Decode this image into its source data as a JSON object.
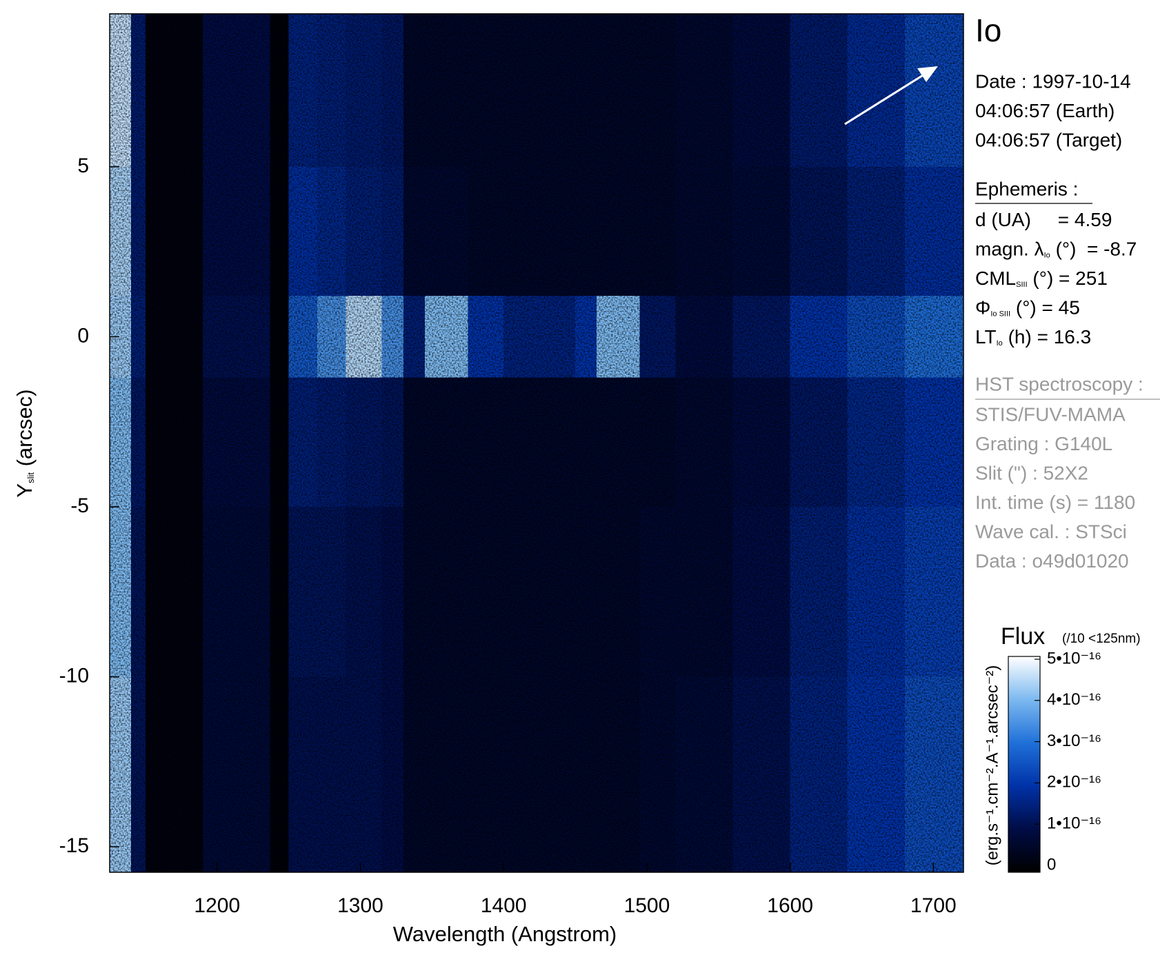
{
  "chart_data": {
    "type": "heatmap",
    "xlabel": "Wavelength (Angstrom)",
    "ylabel": {
      "text": "Y",
      "sub": "slit",
      "rest": " (arcsec)"
    },
    "xlim": [
      1125,
      1721
    ],
    "ylim": [
      -15.75,
      9.5
    ],
    "xticks": [
      1200,
      1300,
      1400,
      1500,
      1600,
      1700
    ],
    "yticks": [
      -15,
      -10,
      -5,
      0,
      5
    ],
    "x_edges": [
      1125,
      1140,
      1150,
      1190,
      1237,
      1250,
      1270,
      1290,
      1315,
      1330,
      1345,
      1375,
      1400,
      1450,
      1465,
      1495,
      1520,
      1560,
      1600,
      1640,
      1680,
      1721
    ],
    "y_edges": [
      9.5,
      5,
      1.2,
      -1.2,
      -5,
      -10,
      -15.75
    ],
    "z": [
      [
        4.5e-16,
        1.4e-16,
        2e-17,
        1e-16,
        1.5e-17,
        1.6e-16,
        1.5e-16,
        1.4e-16,
        1.3e-16,
        6e-17,
        6e-17,
        6e-17,
        6e-17,
        6e-17,
        6e-17,
        6e-17,
        7e-17,
        9e-17,
        1.4e-16,
        1.8e-16,
        2.3e-16
      ],
      [
        4.3e-16,
        1.4e-16,
        2e-17,
        1e-16,
        1.5e-17,
        1.9e-16,
        1.7e-16,
        1.5e-16,
        1.4e-16,
        7e-17,
        7e-17,
        6e-17,
        6e-17,
        6e-17,
        6e-17,
        6e-17,
        7e-17,
        8e-17,
        1.2e-16,
        1.5e-16,
        1.9e-16
      ],
      [
        4.2e-16,
        1.5e-16,
        2e-17,
        1.1e-16,
        1.5e-17,
        2.6e-16,
        3.4e-16,
        4.4e-16,
        3.4e-16,
        1.5e-16,
        4e-16,
        2e-16,
        1.6e-16,
        2e-16,
        4e-16,
        1.3e-16,
        9e-17,
        1.3e-16,
        2e-16,
        2.4e-16,
        2.9e-16
      ],
      [
        4e-16,
        1.3e-16,
        2e-17,
        9e-17,
        1.5e-17,
        1.5e-16,
        1.4e-16,
        1.3e-16,
        1.2e-16,
        6e-17,
        6e-17,
        6e-17,
        6e-17,
        6e-17,
        6e-17,
        6e-17,
        7e-17,
        9e-17,
        1.3e-16,
        1.7e-16,
        2e-16
      ],
      [
        4e-16,
        1.2e-16,
        2e-17,
        8e-17,
        1.5e-17,
        1.2e-16,
        1.2e-16,
        1.1e-16,
        1e-16,
        6e-17,
        6e-17,
        6e-17,
        6e-17,
        6e-17,
        6e-17,
        7e-17,
        7e-17,
        1e-16,
        1.5e-16,
        1.9e-16,
        2.2e-16
      ],
      [
        4.2e-16,
        1.2e-16,
        2e-17,
        8e-17,
        1.5e-17,
        1.1e-16,
        1.1e-16,
        1.1e-16,
        1e-16,
        6e-17,
        6e-17,
        6e-17,
        6e-17,
        6e-17,
        6e-17,
        7e-17,
        8e-17,
        1.1e-16,
        1.6e-16,
        2e-16,
        2.4e-16
      ]
    ],
    "colormap": [
      "#000000",
      "#000c45",
      "#0032a8",
      "#1f70d8",
      "#7cb9f0",
      "#ffffff"
    ],
    "colorbar": {
      "title": "Flux",
      "note": "(/10 <125nm)",
      "units": "(erg.s⁻¹.cm⁻².A⁻¹.arcsec⁻²)",
      "clim": [
        0,
        5e-16
      ],
      "ticks": [
        0,
        {
          "value": 1e-16,
          "label": "1•10⁻¹⁶"
        },
        {
          "value": 2e-16,
          "label": "2•10⁻¹⁶"
        },
        {
          "value": 3e-16,
          "label": "3•10⁻¹⁶"
        },
        {
          "value": 4e-16,
          "label": "4•10⁻¹⁶"
        },
        {
          "value": 5e-16,
          "label": "5•10⁻¹⁶"
        }
      ]
    },
    "panel": {
      "title": "Io",
      "date": [
        "Date : 1997-10-14",
        "04:06:57 (Earth)",
        "04:06:57 (Target)"
      ],
      "ephemeris_title": "Ephemeris :",
      "ephemeris": [
        {
          "text": "d (UA)     = 4.59"
        },
        {
          "text": "magn. λ",
          "sub": "Io",
          "rest": " (°)  = -8.7"
        },
        {
          "text": "CML",
          "sub": "SIII",
          "rest": " (°) = 251"
        },
        {
          "text": "Φ",
          "sub": "Io SIII",
          "rest": " (°) = 45"
        },
        {
          "text": "LT",
          "sub": "Io",
          "rest": " (h) = 16.3"
        }
      ],
      "hst_title": "HST spectroscopy :",
      "hst": [
        "STIS/FUV-MAMA",
        "Grating : G140L",
        "Slit (\") : 52X2",
        "Int. time (s) = 1180",
        "Wave cal. : STSci",
        "Data : o49d01020"
      ]
    }
  }
}
